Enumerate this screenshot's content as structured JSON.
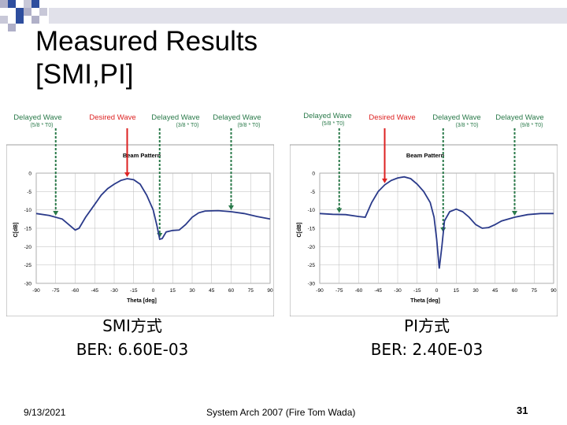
{
  "slide": {
    "title_line1": "Measured Results",
    "title_line2": "[SMI,PI]",
    "footer_date": "9/13/2021",
    "footer_center": "System Arch 2007 (Fire Tom Wada)",
    "page_number": "31"
  },
  "colors": {
    "desired": "#dd2222",
    "delayed": "#2a7a4a",
    "curve": "#2a3a8a",
    "deco_gray": "#b0b0c8",
    "deco_blue": "#2e4e9e"
  },
  "panels": [
    {
      "method": "SMI方式",
      "ber": "BER: 6.60E-03",
      "chart_title": "Beam Pattern",
      "xlabel": "Theta [deg]",
      "ylabel": "C[dB]",
      "xticks": [
        "-90",
        "-75",
        "-60",
        "-45",
        "-30",
        "-15",
        "0",
        "15",
        "30",
        "45",
        "60",
        "75",
        "90"
      ],
      "yticks": [
        "0",
        "-5",
        "-10",
        "-15",
        "-20",
        "-25",
        "-30"
      ],
      "labels": [
        {
          "main": "Delayed Wave",
          "sub": "(5/8 * T0)",
          "kind": "delayed",
          "theta": -75
        },
        {
          "main": "Desired Wave",
          "sub": "",
          "kind": "desired",
          "theta": -20
        },
        {
          "main": "Delayed Wave",
          "sub": "(3/8 * T0)",
          "kind": "delayed",
          "theta": 5
        },
        {
          "main": "Delayed Wave",
          "sub": "(9/8 * T0)",
          "kind": "delayed",
          "theta": 60
        }
      ],
      "curve": [
        [
          -90,
          -11
        ],
        [
          -80,
          -11.5
        ],
        [
          -70,
          -12.5
        ],
        [
          -65,
          -14
        ],
        [
          -60,
          -15.5
        ],
        [
          -57,
          -15
        ],
        [
          -52,
          -12
        ],
        [
          -45,
          -8.5
        ],
        [
          -40,
          -6
        ],
        [
          -35,
          -4.2
        ],
        [
          -30,
          -3
        ],
        [
          -25,
          -2
        ],
        [
          -20,
          -1.5
        ],
        [
          -15,
          -1.8
        ],
        [
          -10,
          -3
        ],
        [
          -5,
          -6
        ],
        [
          0,
          -10
        ],
        [
          3,
          -14.5
        ],
        [
          5,
          -18
        ],
        [
          7,
          -17.8
        ],
        [
          10,
          -16
        ],
        [
          15,
          -15.6
        ],
        [
          20,
          -15.5
        ],
        [
          25,
          -14
        ],
        [
          30,
          -12
        ],
        [
          35,
          -10.8
        ],
        [
          40,
          -10.3
        ],
        [
          50,
          -10.2
        ],
        [
          60,
          -10.5
        ],
        [
          70,
          -11
        ],
        [
          80,
          -11.8
        ],
        [
          90,
          -12.5
        ]
      ]
    },
    {
      "method": "PI方式",
      "ber": "BER: 2.40E-03",
      "chart_title": "Beam Pattern",
      "xlabel": "Theta [deg]",
      "ylabel": "C[dB]",
      "xticks": [
        "-90",
        "-75",
        "-60",
        "-45",
        "-30",
        "-15",
        "0",
        "15",
        "30",
        "45",
        "60",
        "75",
        "90"
      ],
      "yticks": [
        "0",
        "-5",
        "-10",
        "-15",
        "-20",
        "-25",
        "-30"
      ],
      "labels": [
        {
          "main": "Delayed Wave",
          "sub": "(5/8 * T0)",
          "kind": "delayed",
          "theta": -75
        },
        {
          "main": "Desired Wave",
          "sub": "",
          "kind": "desired",
          "theta": -40
        },
        {
          "main": "Delayed Wave",
          "sub": "(3/8 * T0)",
          "kind": "delayed",
          "theta": 5
        },
        {
          "main": "Delayed Wave",
          "sub": "(9/8 * T0)",
          "kind": "delayed",
          "theta": 60
        }
      ],
      "curve": [
        [
          -90,
          -11
        ],
        [
          -80,
          -11.2
        ],
        [
          -70,
          -11.3
        ],
        [
          -60,
          -11.8
        ],
        [
          -55,
          -12
        ],
        [
          -50,
          -8
        ],
        [
          -45,
          -5
        ],
        [
          -40,
          -3.2
        ],
        [
          -35,
          -2
        ],
        [
          -30,
          -1.3
        ],
        [
          -25,
          -1
        ],
        [
          -20,
          -1.5
        ],
        [
          -15,
          -3
        ],
        [
          -10,
          -5
        ],
        [
          -5,
          -8
        ],
        [
          -2,
          -12
        ],
        [
          0,
          -18
        ],
        [
          2,
          -26
        ],
        [
          4,
          -20
        ],
        [
          6,
          -13
        ],
        [
          10,
          -10.5
        ],
        [
          15,
          -9.8
        ],
        [
          20,
          -10.5
        ],
        [
          25,
          -12
        ],
        [
          30,
          -14
        ],
        [
          35,
          -15
        ],
        [
          40,
          -14.8
        ],
        [
          45,
          -14
        ],
        [
          50,
          -13
        ],
        [
          60,
          -12
        ],
        [
          70,
          -11.3
        ],
        [
          80,
          -11
        ],
        [
          90,
          -11
        ]
      ]
    }
  ]
}
